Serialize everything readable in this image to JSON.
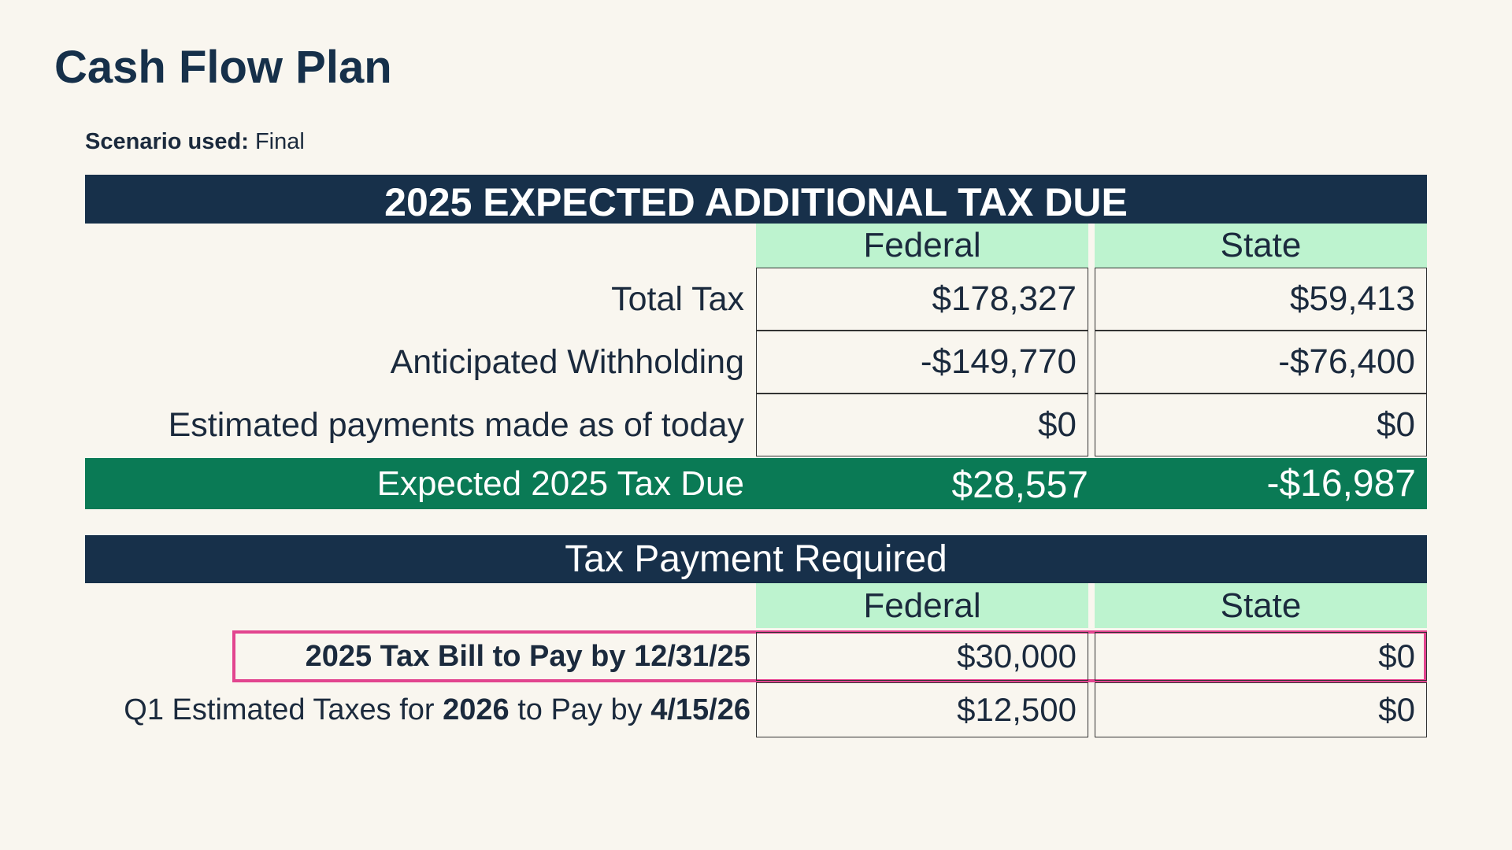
{
  "header": {
    "title": "Cash Flow Plan",
    "scenario_label": "Scenario used:",
    "scenario_value": "Final"
  },
  "table1": {
    "title": "2025 EXPECTED ADDITIONAL TAX DUE",
    "columns": [
      "Federal",
      "State"
    ],
    "rows": [
      [
        "Total Tax",
        "$178,327",
        "$59,413"
      ],
      [
        "Anticipated Withholding",
        "-$149,770",
        "-$76,400"
      ],
      [
        "Estimated payments made as of today",
        "$0",
        "$0"
      ]
    ],
    "total": [
      "Expected 2025 Tax Due",
      "$28,557",
      "-$16,987"
    ]
  },
  "table2": {
    "title": "Tax Payment Required",
    "columns": [
      "Federal",
      "State"
    ],
    "rows": [
      {
        "label": [
          {
            "text": "2025 Tax Bill to Pay by 12/31/25",
            "bold": true
          }
        ],
        "values": [
          "$30,000",
          "$0"
        ]
      },
      {
        "label": [
          {
            "text": "Q1 Estimated Taxes for ",
            "bold": false
          },
          {
            "text": "2026",
            "bold": true
          },
          {
            "text": " to Pay by ",
            "bold": false
          },
          {
            "text": "4/15/26",
            "bold": true
          }
        ],
        "values": [
          "$12,500",
          "$0"
        ]
      }
    ]
  }
}
